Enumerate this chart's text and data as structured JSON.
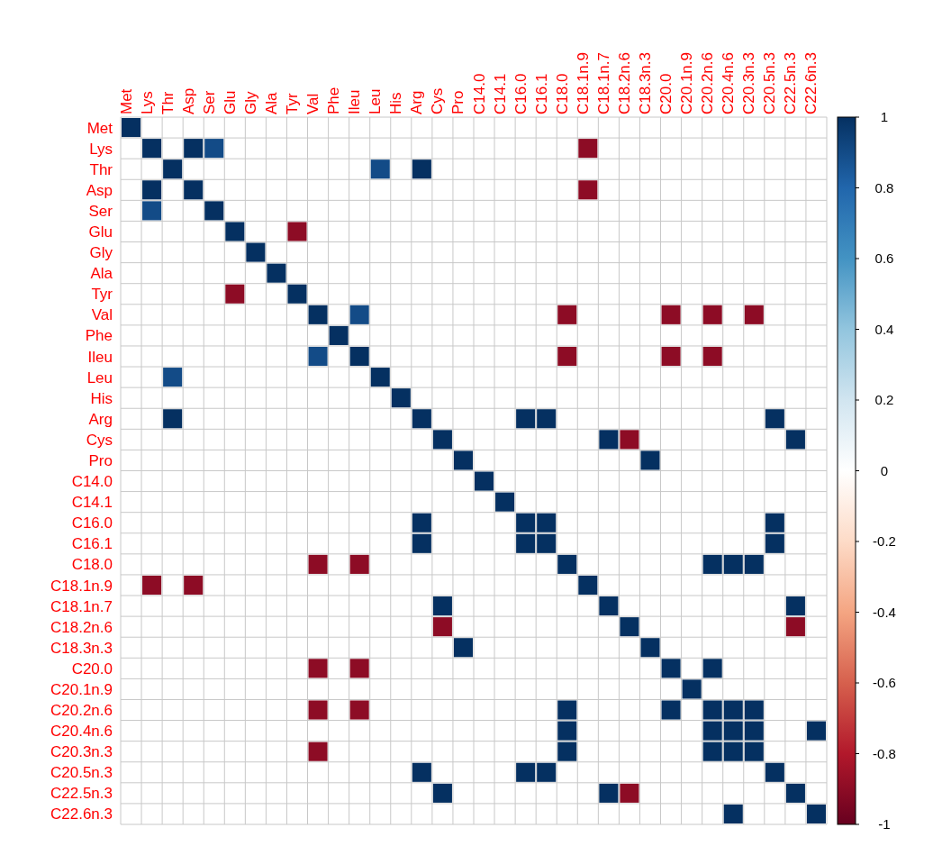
{
  "chart_data": {
    "type": "heatmap",
    "categories": [
      "Met",
      "Lys",
      "Thr",
      "Asp",
      "Ser",
      "Glu",
      "Gly",
      "Ala",
      "Tyr",
      "Val",
      "Phe",
      "Ileu",
      "Leu",
      "His",
      "Arg",
      "Cys",
      "Pro",
      "C14.0",
      "C14.1",
      "C16.0",
      "C16.1",
      "C18.0",
      "C18.1n.9",
      "C18.1n.7",
      "C18.2n.6",
      "C18.3n.3",
      "C20.0",
      "C20.1n.9",
      "C20.2n.6",
      "C20.4n.6",
      "C20.3n.3",
      "C20.5n.3",
      "C22.5n.3",
      "C22.6n.3"
    ],
    "y_categories": [
      "Met",
      "Lys",
      "Thr",
      "Asp",
      "Ser",
      "Glu",
      "Gly",
      "Ala",
      "Tyr",
      "Val",
      "Phe",
      "Ileu",
      "Leu",
      "His",
      "Arg",
      "Cys",
      "Pro",
      "C14.0",
      "C14.1",
      "C16.0",
      "C16.1",
      "C18.0",
      "C18.1n.9",
      "C18.1n.7",
      "C18.2n.6",
      "C18.3n.3",
      "C20.0",
      "C20.1n.9",
      "C20.2n.6",
      "C20.4n.6",
      "C20.3n.3",
      "C20.5n.3",
      "C22.5n.3",
      "C22.6n.3"
    ],
    "cells": [
      [
        1,
        null,
        null,
        null,
        null,
        null,
        null,
        null,
        null,
        null,
        null,
        null,
        null,
        null,
        null,
        null,
        null,
        null,
        null,
        null,
        null,
        null,
        null,
        null,
        null,
        null,
        null,
        null,
        null,
        null,
        null,
        null,
        null,
        null
      ],
      [
        null,
        1,
        null,
        1,
        0.9,
        null,
        null,
        null,
        null,
        null,
        null,
        null,
        null,
        null,
        null,
        null,
        null,
        null,
        null,
        null,
        null,
        null,
        -0.9,
        null,
        null,
        null,
        null,
        null,
        null,
        null,
        null,
        null,
        null,
        null
      ],
      [
        null,
        null,
        1,
        null,
        null,
        null,
        null,
        null,
        null,
        null,
        null,
        null,
        0.9,
        null,
        1,
        null,
        null,
        null,
        null,
        null,
        null,
        null,
        null,
        null,
        null,
        null,
        null,
        null,
        null,
        null,
        null,
        null,
        null,
        null
      ],
      [
        null,
        1,
        null,
        1,
        null,
        null,
        null,
        null,
        null,
        null,
        null,
        null,
        null,
        null,
        null,
        null,
        null,
        null,
        null,
        null,
        null,
        null,
        -0.9,
        null,
        null,
        null,
        null,
        null,
        null,
        null,
        null,
        null,
        null,
        null
      ],
      [
        null,
        0.9,
        null,
        null,
        1,
        null,
        null,
        null,
        null,
        null,
        null,
        null,
        null,
        null,
        null,
        null,
        null,
        null,
        null,
        null,
        null,
        null,
        null,
        null,
        null,
        null,
        null,
        null,
        null,
        null,
        null,
        null,
        null,
        null
      ],
      [
        null,
        null,
        null,
        null,
        null,
        1,
        null,
        null,
        -0.9,
        null,
        null,
        null,
        null,
        null,
        null,
        null,
        null,
        null,
        null,
        null,
        null,
        null,
        null,
        null,
        null,
        null,
        null,
        null,
        null,
        null,
        null,
        null,
        null,
        null
      ],
      [
        null,
        null,
        null,
        null,
        null,
        null,
        1,
        null,
        null,
        null,
        null,
        null,
        null,
        null,
        null,
        null,
        null,
        null,
        null,
        null,
        null,
        null,
        null,
        null,
        null,
        null,
        null,
        null,
        null,
        null,
        null,
        null,
        null,
        null
      ],
      [
        null,
        null,
        null,
        null,
        null,
        null,
        null,
        1,
        null,
        null,
        null,
        null,
        null,
        null,
        null,
        null,
        null,
        null,
        null,
        null,
        null,
        null,
        null,
        null,
        null,
        null,
        null,
        null,
        null,
        null,
        null,
        null,
        null,
        null
      ],
      [
        null,
        null,
        null,
        null,
        null,
        -0.9,
        null,
        null,
        1,
        null,
        null,
        null,
        null,
        null,
        null,
        null,
        null,
        null,
        null,
        null,
        null,
        null,
        null,
        null,
        null,
        null,
        null,
        null,
        null,
        null,
        null,
        null,
        null,
        null
      ],
      [
        null,
        null,
        null,
        null,
        null,
        null,
        null,
        null,
        null,
        1,
        null,
        0.9,
        null,
        null,
        null,
        null,
        null,
        null,
        null,
        null,
        null,
        -0.9,
        null,
        null,
        null,
        null,
        -0.9,
        null,
        -0.9,
        null,
        -0.9,
        null,
        null,
        null
      ],
      [
        null,
        null,
        null,
        null,
        null,
        null,
        null,
        null,
        null,
        null,
        1,
        null,
        null,
        null,
        null,
        null,
        null,
        null,
        null,
        null,
        null,
        null,
        null,
        null,
        null,
        null,
        null,
        null,
        null,
        null,
        null,
        null,
        null,
        null
      ],
      [
        null,
        null,
        null,
        null,
        null,
        null,
        null,
        null,
        null,
        0.9,
        null,
        1,
        null,
        null,
        null,
        null,
        null,
        null,
        null,
        null,
        null,
        -0.9,
        null,
        null,
        null,
        null,
        -0.9,
        null,
        -0.9,
        null,
        null,
        null,
        null,
        null
      ],
      [
        null,
        null,
        0.9,
        null,
        null,
        null,
        null,
        null,
        null,
        null,
        null,
        null,
        1,
        null,
        null,
        null,
        null,
        null,
        null,
        null,
        null,
        null,
        null,
        null,
        null,
        null,
        null,
        null,
        null,
        null,
        null,
        null,
        null,
        null
      ],
      [
        null,
        null,
        null,
        null,
        null,
        null,
        null,
        null,
        null,
        null,
        null,
        null,
        null,
        1,
        null,
        null,
        null,
        null,
        null,
        null,
        null,
        null,
        null,
        null,
        null,
        null,
        null,
        null,
        null,
        null,
        null,
        null,
        null,
        null
      ],
      [
        null,
        null,
        1,
        null,
        null,
        null,
        null,
        null,
        null,
        null,
        null,
        null,
        null,
        null,
        1,
        null,
        null,
        null,
        null,
        1,
        1,
        null,
        null,
        null,
        null,
        null,
        null,
        null,
        null,
        null,
        null,
        1,
        null,
        null
      ],
      [
        null,
        null,
        null,
        null,
        null,
        null,
        null,
        null,
        null,
        null,
        null,
        null,
        null,
        null,
        null,
        1,
        null,
        null,
        null,
        null,
        null,
        null,
        null,
        1,
        -0.9,
        null,
        null,
        null,
        null,
        null,
        null,
        null,
        1,
        null
      ],
      [
        null,
        null,
        null,
        null,
        null,
        null,
        null,
        null,
        null,
        null,
        null,
        null,
        null,
        null,
        null,
        null,
        1,
        null,
        null,
        null,
        null,
        null,
        null,
        null,
        null,
        1,
        null,
        null,
        null,
        null,
        null,
        null,
        null,
        null
      ],
      [
        null,
        null,
        null,
        null,
        null,
        null,
        null,
        null,
        null,
        null,
        null,
        null,
        null,
        null,
        null,
        null,
        null,
        1,
        null,
        null,
        null,
        null,
        null,
        null,
        null,
        null,
        null,
        null,
        null,
        null,
        null,
        null,
        null,
        null
      ],
      [
        null,
        null,
        null,
        null,
        null,
        null,
        null,
        null,
        null,
        null,
        null,
        null,
        null,
        null,
        null,
        null,
        null,
        null,
        1,
        null,
        null,
        null,
        null,
        null,
        null,
        null,
        null,
        null,
        null,
        null,
        null,
        null,
        null,
        null
      ],
      [
        null,
        null,
        null,
        null,
        null,
        null,
        null,
        null,
        null,
        null,
        null,
        null,
        null,
        null,
        1,
        null,
        null,
        null,
        null,
        1,
        1,
        null,
        null,
        null,
        null,
        null,
        null,
        null,
        null,
        null,
        null,
        1,
        null,
        null
      ],
      [
        null,
        null,
        null,
        null,
        null,
        null,
        null,
        null,
        null,
        null,
        null,
        null,
        null,
        null,
        1,
        null,
        null,
        null,
        null,
        1,
        1,
        null,
        null,
        null,
        null,
        null,
        null,
        null,
        null,
        null,
        null,
        1,
        null,
        null
      ],
      [
        null,
        null,
        null,
        null,
        null,
        null,
        null,
        null,
        null,
        -0.9,
        null,
        -0.9,
        null,
        null,
        null,
        null,
        null,
        null,
        null,
        null,
        null,
        1,
        null,
        null,
        null,
        null,
        null,
        null,
        1,
        1,
        1,
        null,
        null,
        null
      ],
      [
        null,
        -0.9,
        null,
        -0.9,
        null,
        null,
        null,
        null,
        null,
        null,
        null,
        null,
        null,
        null,
        null,
        null,
        null,
        null,
        null,
        null,
        null,
        null,
        1,
        null,
        null,
        null,
        null,
        null,
        null,
        null,
        null,
        null,
        null,
        null
      ],
      [
        null,
        null,
        null,
        null,
        null,
        null,
        null,
        null,
        null,
        null,
        null,
        null,
        null,
        null,
        null,
        1,
        null,
        null,
        null,
        null,
        null,
        null,
        null,
        1,
        null,
        null,
        null,
        null,
        null,
        null,
        null,
        null,
        1,
        null
      ],
      [
        null,
        null,
        null,
        null,
        null,
        null,
        null,
        null,
        null,
        null,
        null,
        null,
        null,
        null,
        null,
        -0.9,
        null,
        null,
        null,
        null,
        null,
        null,
        null,
        null,
        1,
        null,
        null,
        null,
        null,
        null,
        null,
        null,
        -0.9,
        null
      ],
      [
        null,
        null,
        null,
        null,
        null,
        null,
        null,
        null,
        null,
        null,
        null,
        null,
        null,
        null,
        null,
        null,
        1,
        null,
        null,
        null,
        null,
        null,
        null,
        null,
        null,
        1,
        null,
        null,
        null,
        null,
        null,
        null,
        null,
        null
      ],
      [
        null,
        null,
        null,
        null,
        null,
        null,
        null,
        null,
        null,
        -0.9,
        null,
        -0.9,
        null,
        null,
        null,
        null,
        null,
        null,
        null,
        null,
        null,
        null,
        null,
        null,
        null,
        null,
        1,
        null,
        1,
        null,
        null,
        null,
        null,
        null
      ],
      [
        null,
        null,
        null,
        null,
        null,
        null,
        null,
        null,
        null,
        null,
        null,
        null,
        null,
        null,
        null,
        null,
        null,
        null,
        null,
        null,
        null,
        null,
        null,
        null,
        null,
        null,
        null,
        1,
        null,
        null,
        null,
        null,
        null,
        null
      ],
      [
        null,
        null,
        null,
        null,
        null,
        null,
        null,
        null,
        null,
        -0.9,
        null,
        -0.9,
        null,
        null,
        null,
        null,
        null,
        null,
        null,
        null,
        null,
        1,
        null,
        null,
        null,
        null,
        1,
        null,
        1,
        1,
        1,
        null,
        null,
        null
      ],
      [
        null,
        null,
        null,
        null,
        null,
        null,
        null,
        null,
        null,
        null,
        null,
        null,
        null,
        null,
        null,
        null,
        null,
        null,
        null,
        null,
        null,
        1,
        null,
        null,
        null,
        null,
        null,
        null,
        1,
        1,
        1,
        null,
        null,
        1
      ],
      [
        null,
        null,
        null,
        null,
        null,
        null,
        null,
        null,
        null,
        -0.9,
        null,
        null,
        null,
        null,
        null,
        null,
        null,
        null,
        null,
        null,
        null,
        1,
        null,
        null,
        null,
        null,
        null,
        null,
        1,
        1,
        1,
        null,
        null,
        null
      ],
      [
        null,
        null,
        null,
        null,
        null,
        null,
        null,
        null,
        null,
        null,
        null,
        null,
        null,
        null,
        1,
        null,
        null,
        null,
        null,
        1,
        1,
        null,
        null,
        null,
        null,
        null,
        null,
        null,
        null,
        null,
        null,
        1,
        null,
        null
      ],
      [
        null,
        null,
        null,
        null,
        null,
        null,
        null,
        null,
        null,
        null,
        null,
        null,
        null,
        null,
        null,
        1,
        null,
        null,
        null,
        null,
        null,
        null,
        null,
        1,
        -0.9,
        null,
        null,
        null,
        null,
        null,
        null,
        null,
        1,
        null
      ],
      [
        null,
        null,
        null,
        null,
        null,
        null,
        null,
        null,
        null,
        null,
        null,
        null,
        null,
        null,
        null,
        null,
        null,
        null,
        null,
        null,
        null,
        null,
        null,
        null,
        null,
        null,
        null,
        null,
        null,
        1,
        null,
        null,
        null,
        1
      ]
    ],
    "clim": [
      -1,
      1
    ],
    "cticks": [
      -1,
      -0.8,
      -0.6,
      -0.4,
      -0.2,
      0,
      0.2,
      0.4,
      0.6,
      0.8,
      1
    ],
    "grid": true
  }
}
